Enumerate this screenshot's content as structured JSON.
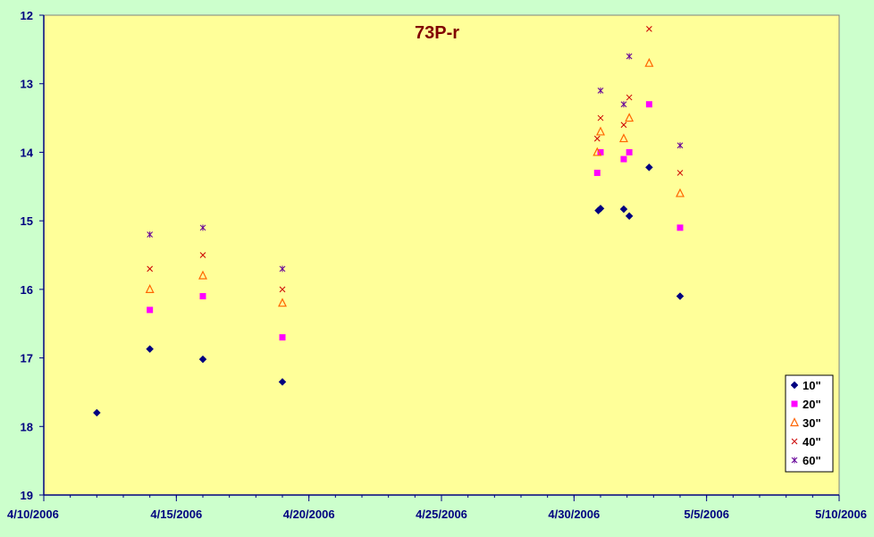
{
  "chart_data": {
    "type": "scatter",
    "title": "73P-r",
    "xlabel": "",
    "ylabel": "",
    "x_axis": {
      "type": "date",
      "min": "2006-04-10",
      "max": "2006-05-10",
      "tick_labels": [
        "4/10/2006",
        "4/15/2006",
        "4/20/2006",
        "4/25/2006",
        "4/30/2006",
        "5/5/2006",
        "5/10/2006"
      ],
      "minor_tick_interval_days": 1
    },
    "y_axis": {
      "min": 12,
      "max": 19,
      "reversed": true,
      "tick_labels": [
        "12",
        "13",
        "14",
        "15",
        "16",
        "17",
        "18",
        "19"
      ]
    },
    "grid": false,
    "legend_position": "bottom-right",
    "colors": {
      "page_background": "#ccffcc",
      "plot_background": "#ffff99",
      "axis": "#000080",
      "title": "#800000"
    },
    "series": [
      {
        "name": "10\"",
        "marker": "diamond",
        "color": "#000080",
        "points": [
          [
            "2006-04-12",
            17.8
          ],
          [
            "2006-04-14",
            16.87
          ],
          [
            "2006-04-16",
            17.02
          ],
          [
            "2006-04-19",
            17.35
          ],
          [
            "2006-04-30 22:00",
            14.85
          ],
          [
            "2006-05-01",
            14.82
          ],
          [
            "2006-05-01 21:00",
            14.83
          ],
          [
            "2006-05-02 02:00",
            14.93
          ],
          [
            "2006-05-02 20:00",
            14.22
          ],
          [
            "2006-05-04",
            16.1
          ]
        ]
      },
      {
        "name": "20\"",
        "marker": "square",
        "color": "#ff00ff",
        "points": [
          [
            "2006-04-14",
            16.3
          ],
          [
            "2006-04-16",
            16.1
          ],
          [
            "2006-04-19",
            16.7
          ],
          [
            "2006-04-30 21:00",
            14.3
          ],
          [
            "2006-05-01",
            14.0
          ],
          [
            "2006-05-01 21:00",
            14.1
          ],
          [
            "2006-05-02 02:00",
            14.0
          ],
          [
            "2006-05-02 20:00",
            13.3
          ],
          [
            "2006-05-04",
            15.1
          ]
        ]
      },
      {
        "name": "30\"",
        "marker": "triangle",
        "color": "#ff6600",
        "points": [
          [
            "2006-04-14",
            16.0
          ],
          [
            "2006-04-16",
            15.8
          ],
          [
            "2006-04-19",
            16.2
          ],
          [
            "2006-04-30 21:00",
            14.0
          ],
          [
            "2006-05-01",
            13.7
          ],
          [
            "2006-05-01 21:00",
            13.8
          ],
          [
            "2006-05-02 02:00",
            13.5
          ],
          [
            "2006-05-02 20:00",
            12.7
          ],
          [
            "2006-05-04",
            14.6
          ]
        ]
      },
      {
        "name": "40\"",
        "marker": "x",
        "color": "#cc0000",
        "points": [
          [
            "2006-04-14",
            15.7
          ],
          [
            "2006-04-16",
            15.5
          ],
          [
            "2006-04-19",
            16.0
          ],
          [
            "2006-04-30 21:00",
            13.8
          ],
          [
            "2006-05-01",
            13.5
          ],
          [
            "2006-05-01 21:00",
            13.6
          ],
          [
            "2006-05-02 02:00",
            13.2
          ],
          [
            "2006-05-02 20:00",
            12.2
          ],
          [
            "2006-05-04",
            14.3
          ]
        ]
      },
      {
        "name": "60\"",
        "marker": "star",
        "color": "#660099",
        "points": [
          [
            "2006-04-14",
            15.2
          ],
          [
            "2006-04-16",
            15.1
          ],
          [
            "2006-04-19",
            15.7
          ],
          [
            "2006-05-01",
            13.1
          ],
          [
            "2006-05-01 21:00",
            13.3
          ],
          [
            "2006-05-02 02:00",
            12.6
          ],
          [
            "2006-05-04",
            13.9
          ]
        ]
      }
    ]
  }
}
